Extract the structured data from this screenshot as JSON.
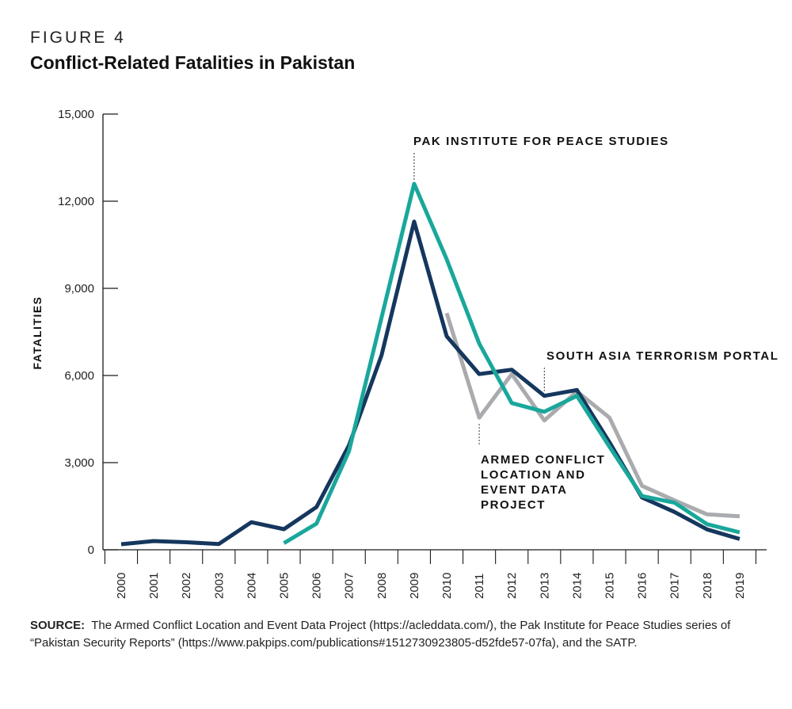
{
  "figure": {
    "label": "FIGURE 4",
    "title": "Conflict-Related Fatalities in Pakistan"
  },
  "source": {
    "label": "SOURCE:",
    "text": "The Armed Conflict Location and Event Data Project (https://acleddata.com/), the Pak Institute for Peace Studies series of “Pakistan Security Reports” (https://www.pakpips.com/publications#1512730923805-d52fde57-07fa), and the SATP."
  },
  "chart_data": {
    "type": "line",
    "title": "Conflict-Related Fatalities in Pakistan",
    "xlabel": "",
    "ylabel": "FATALITIES",
    "ylim": [
      0,
      15000
    ],
    "yticks": [
      0,
      3000,
      6000,
      9000,
      12000,
      15000
    ],
    "ytick_labels": [
      "0",
      "3,000",
      "6,000",
      "9,000",
      "12,000",
      "15,000"
    ],
    "x": [
      "2000",
      "2001",
      "2002",
      "2003",
      "2004",
      "2005",
      "2006",
      "2007",
      "2008",
      "2009",
      "2010",
      "2011",
      "2012",
      "2013",
      "2014",
      "2015",
      "2016",
      "2017",
      "2018",
      "2019"
    ],
    "grid": false,
    "series": [
      {
        "name": "SOUTH ASIA TERRORISM PORTAL",
        "color": "#15375e",
        "values": [
          190,
          300,
          260,
          200,
          950,
          710,
          1470,
          3600,
          6700,
          11300,
          7350,
          6050,
          6200,
          5300,
          5500,
          3700,
          1800,
          1300,
          700,
          370
        ]
      },
      {
        "name": "PAK INSTITUTE FOR PEACE STUDIES",
        "color": "#1aa79b",
        "values": [
          null,
          null,
          null,
          null,
          null,
          230,
          900,
          3400,
          8000,
          12600,
          10000,
          7100,
          5050,
          4750,
          5300,
          3550,
          1850,
          1620,
          880,
          600
        ]
      },
      {
        "name": "ARMED CONFLICT LOCATION AND EVENT DATA PROJECT",
        "color": "#a9abae",
        "values": [
          null,
          null,
          null,
          null,
          null,
          null,
          null,
          null,
          null,
          null,
          8150,
          4550,
          6050,
          4450,
          5450,
          4550,
          2200,
          1700,
          1220,
          1150
        ]
      }
    ],
    "annotations": [
      {
        "series": 1,
        "label_lines": [
          "PAK INSTITUTE FOR PEACE STUDIES"
        ]
      },
      {
        "series": 0,
        "label_lines": [
          "SOUTH ASIA TERRORISM PORTAL"
        ]
      },
      {
        "series": 2,
        "label_lines": [
          "ARMED CONFLICT",
          "LOCATION AND",
          "EVENT DATA",
          "PROJECT"
        ]
      }
    ]
  }
}
